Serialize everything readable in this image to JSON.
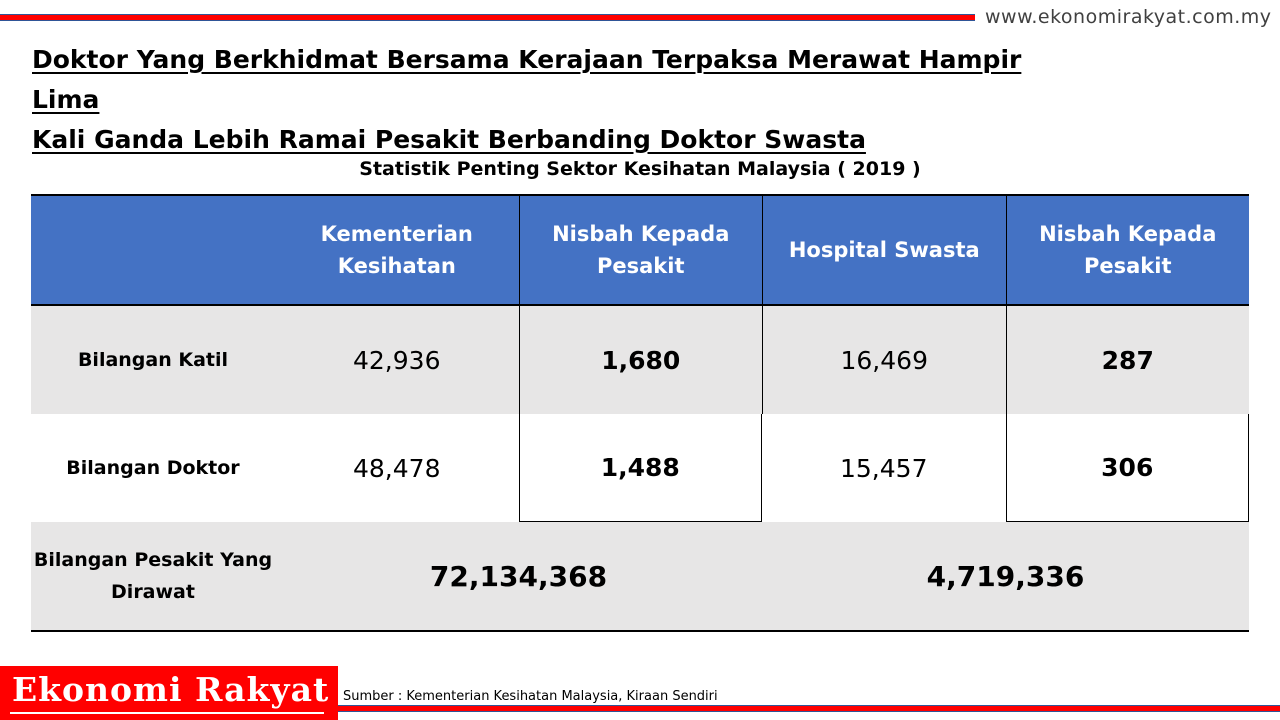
{
  "site_url": "www.ekonomirakyat.com.my",
  "title_line1": "Doktor Yang Berkhidmat Bersama Kerajaan Terpaksa Merawat Hampir Lima",
  "title_line2": "Kali Ganda Lebih Ramai Pesakit Berbanding Doktor Swasta",
  "table_title": "Statistik Penting Sektor Kesihatan Malaysia ( 2019 )",
  "headers": [
    "",
    "Kementerian Kesihatan",
    "Nisbah Kepada Pesakit",
    "Hospital Swasta",
    "Nisbah Kepada Pesakit"
  ],
  "rows": [
    {
      "label": "Bilangan Katil",
      "kkm": "42,936",
      "kkm_ratio": "1,680",
      "swasta": "16,469",
      "swasta_ratio": "287"
    },
    {
      "label": "Bilangan Doktor",
      "kkm": "48,478",
      "kkm_ratio": "1,488",
      "swasta": "15,457",
      "swasta_ratio": "306"
    }
  ],
  "patients": {
    "label": "Bilangan Pesakit Yang Dirawat",
    "kkm": "72,134,368",
    "swasta": "4,719,336"
  },
  "logo_text": "Ekonomi Rakyat",
  "source": "Sumber  : Kementerian  Kesihatan Malaysia, Kiraan Sendiri",
  "colors": {
    "header_blue": "#4472c4",
    "accent_red": "#ff0000",
    "row_gray": "#e7e6e6"
  }
}
